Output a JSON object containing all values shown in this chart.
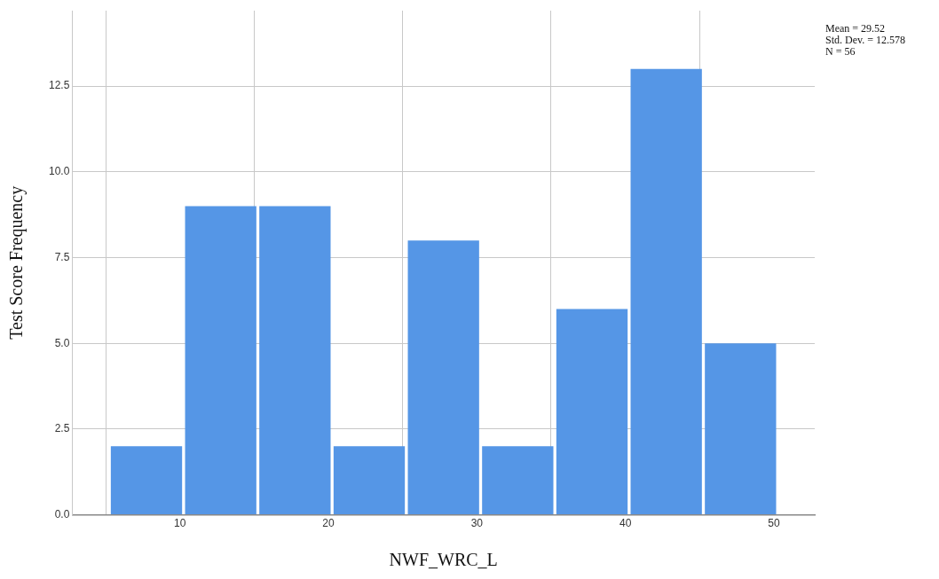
{
  "chart_data": {
    "type": "histogram",
    "xlabel": "NWF_WRC_L",
    "ylabel": "Test Score Frequency",
    "bins": [
      5.25,
      10.25,
      15.25,
      20.25,
      25.25,
      30.25,
      35.25,
      40.25,
      45.25,
      50.25
    ],
    "values": [
      2,
      9,
      9,
      2,
      8,
      2,
      6,
      13,
      5
    ],
    "color": "#5596e6",
    "xlim": [
      2.75,
      52.75
    ],
    "xticks": [
      10,
      20,
      30,
      40,
      50
    ],
    "ylim": [
      0,
      14.7
    ],
    "yticks": [
      {
        "value": 0,
        "label": "0.0"
      },
      {
        "value": 2.5,
        "label": "2.5"
      },
      {
        "value": 5,
        "label": "5.0"
      },
      {
        "value": 7.5,
        "label": "7.5"
      },
      {
        "value": 10,
        "label": "10.0"
      },
      {
        "value": 12.5,
        "label": "12.5"
      }
    ],
    "grid": true,
    "legend": false,
    "annotations": [
      "Mean = 29.52",
      "Std. Dev. = 12.578",
      "N = 56"
    ]
  }
}
